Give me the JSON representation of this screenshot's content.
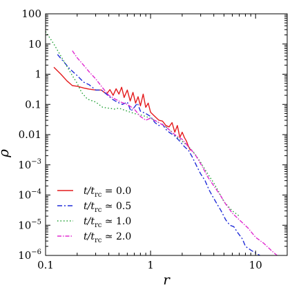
{
  "chart_data": {
    "type": "line",
    "xscale": "log",
    "yscale": "log",
    "xlim": [
      0.1,
      20
    ],
    "ylim": [
      1e-06,
      100
    ],
    "xlabel": "r",
    "ylabel": "ρ",
    "xticks": [
      {
        "value": 0.1,
        "label": "0.1"
      },
      {
        "value": 1,
        "label": "1"
      },
      {
        "value": 10,
        "label": "10"
      }
    ],
    "yticks": [
      {
        "value": 100,
        "base": "100",
        "exp": ""
      },
      {
        "value": 10,
        "base": "10",
        "exp": ""
      },
      {
        "value": 1,
        "base": "1",
        "exp": ""
      },
      {
        "value": 0.1,
        "base": "0.1",
        "exp": ""
      },
      {
        "value": 0.01,
        "base": "0.01",
        "exp": ""
      },
      {
        "value": 0.001,
        "base": "10",
        "exp": "−3"
      },
      {
        "value": 0.0001,
        "base": "10",
        "exp": "−4"
      },
      {
        "value": 1e-05,
        "base": "10",
        "exp": "−5"
      },
      {
        "value": 1e-06,
        "base": "10",
        "exp": "−6"
      }
    ],
    "legend": {
      "placement": "lower-left",
      "entries": [
        {
          "prefix": "t/t",
          "sub": "rc",
          "op": "=",
          "value": "0.0"
        },
        {
          "prefix": "t/t",
          "sub": "rc",
          "op": "≃",
          "value": "0.5"
        },
        {
          "prefix": "t/t",
          "sub": "rc",
          "op": "≃",
          "value": "1.0"
        },
        {
          "prefix": "t/t",
          "sub": "rc",
          "op": "≃",
          "value": "2.0"
        }
      ]
    },
    "series": [
      {
        "color": "#e41a1c",
        "dash": "",
        "points": [
          [
            0.12,
            1.7
          ],
          [
            0.14,
            1.0
          ],
          [
            0.16,
            0.6
          ],
          [
            0.18,
            0.42
          ],
          [
            0.2,
            0.4
          ],
          [
            0.23,
            0.35
          ],
          [
            0.26,
            0.32
          ],
          [
            0.3,
            0.3
          ],
          [
            0.34,
            0.3
          ],
          [
            0.38,
            0.22
          ],
          [
            0.41,
            0.31
          ],
          [
            0.44,
            0.2
          ],
          [
            0.47,
            0.33
          ],
          [
            0.5,
            0.22
          ],
          [
            0.53,
            0.37
          ],
          [
            0.56,
            0.17
          ],
          [
            0.6,
            0.3
          ],
          [
            0.64,
            0.13
          ],
          [
            0.68,
            0.25
          ],
          [
            0.72,
            0.11
          ],
          [
            0.76,
            0.18
          ],
          [
            0.8,
            0.09
          ],
          [
            0.85,
            0.22
          ],
          [
            0.9,
            0.08
          ],
          [
            0.95,
            0.11
          ],
          [
            1.0,
            0.055
          ],
          [
            1.1,
            0.04
          ],
          [
            1.2,
            0.03
          ],
          [
            1.3,
            0.028
          ],
          [
            1.4,
            0.02
          ],
          [
            1.5,
            0.018
          ],
          [
            1.6,
            0.025
          ],
          [
            1.7,
            0.012
          ],
          [
            1.8,
            0.02
          ],
          [
            1.9,
            0.008
          ],
          [
            2.0,
            0.012
          ],
          [
            2.1,
            0.008
          ],
          [
            2.2,
            0.006
          ],
          [
            2.3,
            0.004
          ],
          [
            2.4,
            0.003
          ]
        ]
      },
      {
        "color": "#1f2bd8",
        "dash": "7,3,2,3",
        "points": [
          [
            0.13,
            4.5
          ],
          [
            0.15,
            2.5
          ],
          [
            0.17,
            1.5
          ],
          [
            0.2,
            0.9
          ],
          [
            0.23,
            0.55
          ],
          [
            0.26,
            0.45
          ],
          [
            0.3,
            0.3
          ],
          [
            0.34,
            0.3
          ],
          [
            0.38,
            0.22
          ],
          [
            0.43,
            0.15
          ],
          [
            0.48,
            0.12
          ],
          [
            0.54,
            0.1
          ],
          [
            0.6,
            0.12
          ],
          [
            0.65,
            0.06
          ],
          [
            0.7,
            0.08
          ],
          [
            0.75,
            0.11
          ],
          [
            0.8,
            0.06
          ],
          [
            0.9,
            0.05
          ],
          [
            1.0,
            0.04
          ],
          [
            1.1,
            0.025
          ],
          [
            1.2,
            0.02
          ],
          [
            1.3,
            0.022
          ],
          [
            1.4,
            0.015
          ],
          [
            1.5,
            0.012
          ],
          [
            1.7,
            0.009
          ],
          [
            1.9,
            0.006
          ],
          [
            2.1,
            0.004
          ],
          [
            2.3,
            0.003
          ],
          [
            2.5,
            0.0018
          ],
          [
            2.8,
            0.0008
          ],
          [
            3.0,
            0.0005
          ],
          [
            3.3,
            0.0003
          ],
          [
            3.6,
            0.00015
          ],
          [
            3.9,
            9e-05
          ],
          [
            4.3,
            5e-05
          ],
          [
            4.7,
            3e-05
          ],
          [
            5.2,
            1.5e-05
          ],
          [
            5.7,
            1e-05
          ],
          [
            6.2,
            9e-06
          ],
          [
            6.8,
            5.5e-06
          ],
          [
            7.5,
            3.5e-06
          ],
          [
            8.0,
            2e-06
          ],
          [
            9.0,
            1.5e-06
          ],
          [
            10.0,
            1.2e-06
          ],
          [
            11.0,
            1e-06
          ]
        ]
      },
      {
        "color": "#1a9e2e",
        "dash": "1.5,3",
        "points": [
          [
            0.1,
            26
          ],
          [
            0.12,
            10
          ],
          [
            0.14,
            4
          ],
          [
            0.16,
            1.8
          ],
          [
            0.18,
            0.9
          ],
          [
            0.2,
            0.5
          ],
          [
            0.22,
            0.25
          ],
          [
            0.25,
            0.15
          ],
          [
            0.3,
            0.12
          ],
          [
            0.35,
            0.08
          ],
          [
            0.4,
            0.075
          ],
          [
            0.45,
            0.07
          ],
          [
            0.5,
            0.075
          ],
          [
            0.6,
            0.06
          ],
          [
            0.7,
            0.05
          ],
          [
            0.8,
            0.045
          ],
          [
            0.9,
            0.04
          ],
          [
            1.0,
            0.035
          ],
          [
            1.2,
            0.025
          ],
          [
            1.4,
            0.018
          ],
          [
            1.6,
            0.012
          ],
          [
            1.8,
            0.008
          ],
          [
            2.0,
            0.006
          ],
          [
            2.3,
            0.004
          ],
          [
            2.6,
            0.0025
          ],
          [
            3.0,
            0.0012
          ],
          [
            3.5,
            0.0005
          ],
          [
            4.0,
            0.00025
          ],
          [
            4.5,
            0.00012
          ],
          [
            5.0,
            6e-05
          ],
          [
            6.0,
            3e-05
          ],
          [
            7.0,
            2e-05
          ]
        ]
      },
      {
        "color": "#e02ad0",
        "dash": "6,2,1.5,2",
        "points": [
          [
            0.18,
            6
          ],
          [
            0.2,
            3.5
          ],
          [
            0.23,
            2
          ],
          [
            0.26,
            1.2
          ],
          [
            0.3,
            0.7
          ],
          [
            0.35,
            0.35
          ],
          [
            0.4,
            0.2
          ],
          [
            0.46,
            0.15
          ],
          [
            0.52,
            0.12
          ],
          [
            0.6,
            0.1
          ],
          [
            0.7,
            0.07
          ],
          [
            0.8,
            0.04
          ],
          [
            0.9,
            0.03
          ],
          [
            1.0,
            0.035
          ],
          [
            1.2,
            0.025
          ],
          [
            1.4,
            0.018
          ],
          [
            1.7,
            0.01
          ],
          [
            2.0,
            0.007
          ],
          [
            2.3,
            0.004
          ],
          [
            2.7,
            0.002
          ],
          [
            3.1,
            0.0009
          ],
          [
            3.5,
            0.0004
          ],
          [
            4.0,
            0.0002
          ],
          [
            4.6,
            0.0001
          ],
          [
            5.2,
            5e-05
          ],
          [
            6.0,
            2.5e-05
          ],
          [
            7.0,
            1.5e-05
          ],
          [
            8.5,
            8e-06
          ],
          [
            10.0,
            4e-06
          ],
          [
            12.0,
            2.5e-06
          ],
          [
            14.0,
            1.5e-06
          ],
          [
            16.0,
            1e-06
          ]
        ]
      }
    ]
  }
}
